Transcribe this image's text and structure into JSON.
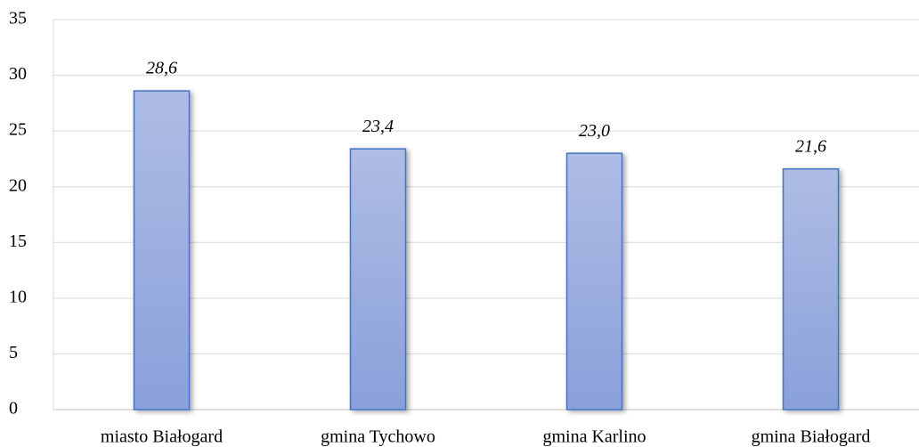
{
  "chart_data": {
    "type": "bar",
    "categories": [
      "miasto Białogard",
      "gmina Tychowo",
      "gmina Karlino",
      "gmina Białogard"
    ],
    "values": [
      28.6,
      23.4,
      23.0,
      21.6
    ],
    "value_labels": [
      "28,6",
      "23,4",
      "23,0",
      "21,6"
    ],
    "color": "#96aadf",
    "ylim": [
      0,
      35
    ],
    "yticks": [
      0,
      5,
      10,
      15,
      20,
      25,
      30,
      35
    ],
    "grid": true
  }
}
